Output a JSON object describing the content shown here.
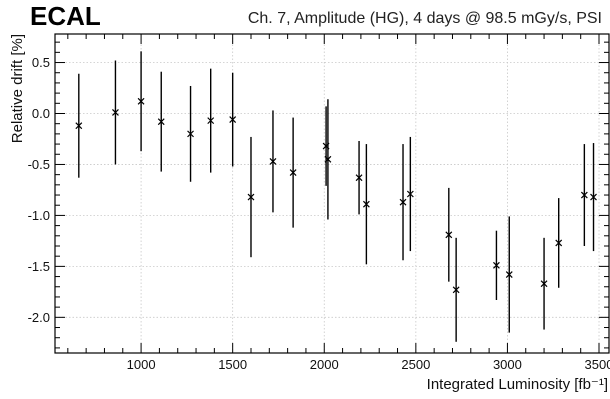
{
  "header": {
    "brand": "ECAL",
    "subtitle": "Ch. 7, Amplitude (HG), 4 days @ 98.5 mGy/s, PSI"
  },
  "chart_data": {
    "type": "scatter",
    "xlabel": "Integrated Luminosity [fb⁻¹]",
    "ylabel": "Relative drift [%]",
    "xlim": [
      530,
      3560
    ],
    "ylim": [
      -2.35,
      0.78
    ],
    "xticks": [
      1000,
      1500,
      2000,
      2500,
      3000,
      3500
    ],
    "xtick_labels": [
      "1000",
      "1500",
      "2000",
      "2500",
      "3000",
      "3500"
    ],
    "yticks": [
      0.5,
      0.0,
      -0.5,
      -1.0,
      -1.5,
      -2.0
    ],
    "ytick_labels": [
      "0.5",
      "0.0",
      "-0.5",
      "-1.0",
      "-1.5",
      "-2.0"
    ],
    "grid": true,
    "marker": "x",
    "points": [
      {
        "x": 660,
        "y": -0.12,
        "err": 0.51
      },
      {
        "x": 860,
        "y": 0.01,
        "err": 0.51
      },
      {
        "x": 1000,
        "y": 0.12,
        "err": 0.49
      },
      {
        "x": 1110,
        "y": -0.08,
        "err": 0.49
      },
      {
        "x": 1270,
        "y": -0.2,
        "err": 0.47
      },
      {
        "x": 1380,
        "y": -0.07,
        "err": 0.51
      },
      {
        "x": 1500,
        "y": -0.06,
        "err": 0.46
      },
      {
        "x": 1600,
        "y": -0.82,
        "err": 0.59
      },
      {
        "x": 1720,
        "y": -0.47,
        "err": 0.5
      },
      {
        "x": 1830,
        "y": -0.58,
        "err": 0.54
      },
      {
        "x": 2010,
        "y": -0.32,
        "err": 0.39
      },
      {
        "x": 2020,
        "y": -0.45,
        "err": 0.59
      },
      {
        "x": 2190,
        "y": -0.63,
        "err": 0.36
      },
      {
        "x": 2230,
        "y": -0.89,
        "err": 0.59
      },
      {
        "x": 2430,
        "y": -0.87,
        "err": 0.57
      },
      {
        "x": 2470,
        "y": -0.79,
        "err": 0.56
      },
      {
        "x": 2680,
        "y": -1.19,
        "err": 0.46
      },
      {
        "x": 2720,
        "y": -1.73,
        "err": 0.51
      },
      {
        "x": 2940,
        "y": -1.49,
        "err": 0.34
      },
      {
        "x": 3010,
        "y": -1.58,
        "err": 0.57
      },
      {
        "x": 3200,
        "y": -1.67,
        "err": 0.45
      },
      {
        "x": 3280,
        "y": -1.27,
        "err": 0.44
      },
      {
        "x": 3420,
        "y": -0.8,
        "err": 0.5
      },
      {
        "x": 3470,
        "y": -0.82,
        "err": 0.53
      }
    ]
  }
}
